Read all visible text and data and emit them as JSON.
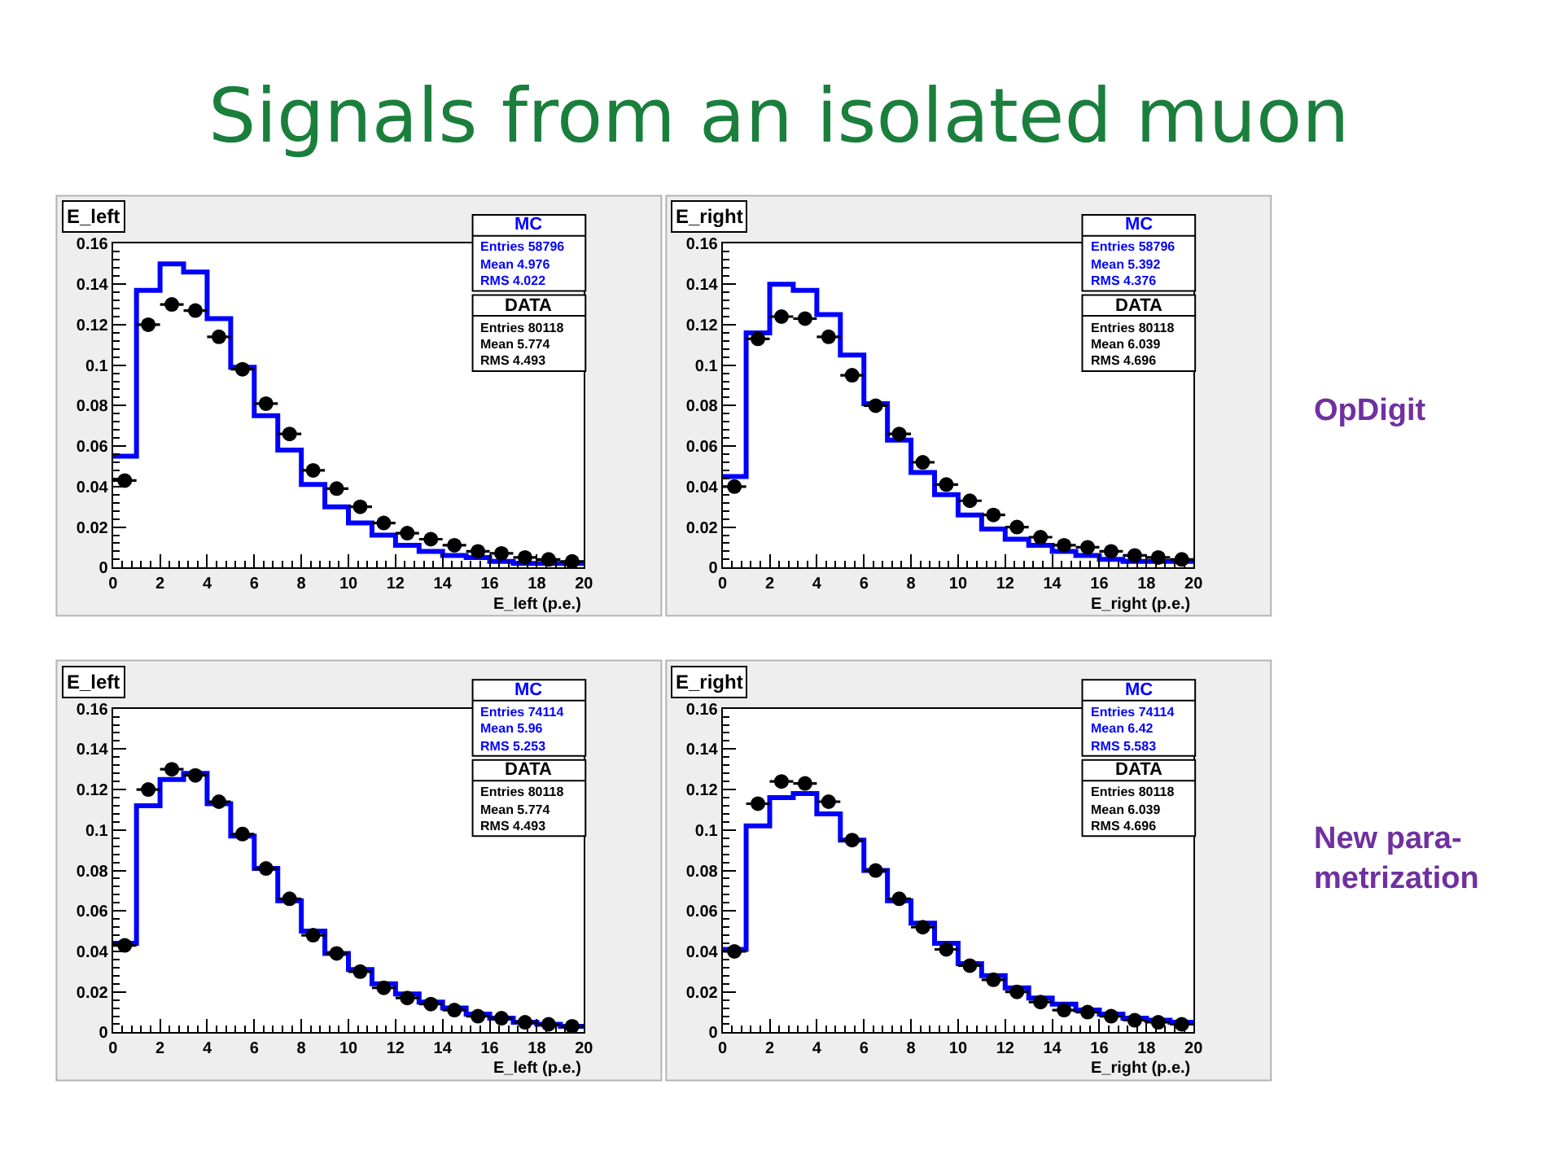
{
  "chart_data": [
    {
      "type": "other",
      "title": "Signals from an isolated muon",
      "annotations": [
        "OpDigit",
        "New para-\nmetrization"
      ]
    },
    {
      "type": "histogram",
      "title": "E_left",
      "xlabel": "E_left (p.e.)",
      "bins": [
        0,
        1,
        2,
        3,
        4,
        5,
        6,
        7,
        8,
        9,
        10,
        11,
        12,
        13,
        14,
        15,
        16,
        17,
        18,
        19,
        20
      ],
      "xlim": [
        0,
        20
      ],
      "ylim": [
        0,
        0.16
      ],
      "xticks": [
        0,
        2,
        4,
        6,
        8,
        10,
        12,
        14,
        16,
        18,
        20
      ],
      "yticks": [
        0,
        0.02,
        0.04,
        0.06,
        0.08,
        0.1,
        0.12,
        0.14,
        0.16
      ],
      "legend": "top right",
      "series": [
        {
          "name": "MC",
          "type": "histogram",
          "color": "#0000ff",
          "values": [
            0.055,
            0.137,
            0.15,
            0.146,
            0.123,
            0.099,
            0.075,
            0.058,
            0.041,
            0.03,
            0.022,
            0.016,
            0.011,
            0.008,
            0.006,
            0.005,
            0.003,
            0.002,
            0.002,
            0.002
          ]
        },
        {
          "name": "DATA",
          "type": "scatter",
          "color": "#000000",
          "marker": "circle",
          "x": [
            0.5,
            1.5,
            2.5,
            3.5,
            4.5,
            5.5,
            6.5,
            7.5,
            8.5,
            9.5,
            10.5,
            11.5,
            12.5,
            13.5,
            14.5,
            15.5,
            16.5,
            17.5,
            18.5,
            19.5
          ],
          "values": [
            0.043,
            0.12,
            0.13,
            0.127,
            0.114,
            0.098,
            0.081,
            0.066,
            0.048,
            0.039,
            0.03,
            0.022,
            0.017,
            0.014,
            0.011,
            0.008,
            0.007,
            0.005,
            0.004,
            0.003
          ],
          "xerrors": [
            0.5,
            0.5,
            0.5,
            0.5,
            0.5,
            0.5,
            0.5,
            0.5,
            0.5,
            0.5,
            0.5,
            0.5,
            0.5,
            0.5,
            0.5,
            0.5,
            0.5,
            0.5,
            0.5,
            0.5
          ]
        }
      ],
      "annotations": [
        "Entries 58796",
        "Mean 4.976",
        "RMS 4.022",
        "Entries 80118",
        "Mean 5.774",
        "RMS 4.493"
      ]
    },
    {
      "type": "histogram",
      "title": "E_right",
      "xlabel": "E_right (p.e.)",
      "bins": [
        0,
        1,
        2,
        3,
        4,
        5,
        6,
        7,
        8,
        9,
        10,
        11,
        12,
        13,
        14,
        15,
        16,
        17,
        18,
        19,
        20
      ],
      "xlim": [
        0,
        20
      ],
      "ylim": [
        0,
        0.16
      ],
      "xticks": [
        0,
        2,
        4,
        6,
        8,
        10,
        12,
        14,
        16,
        18,
        20
      ],
      "yticks": [
        0,
        0.02,
        0.04,
        0.06,
        0.08,
        0.1,
        0.12,
        0.14,
        0.16
      ],
      "legend": "top right",
      "series": [
        {
          "name": "MC",
          "type": "histogram",
          "color": "#0000ff",
          "values": [
            0.045,
            0.116,
            0.14,
            0.137,
            0.125,
            0.105,
            0.081,
            0.063,
            0.047,
            0.036,
            0.026,
            0.019,
            0.014,
            0.011,
            0.008,
            0.006,
            0.004,
            0.003,
            0.003,
            0.003
          ]
        },
        {
          "name": "DATA",
          "type": "scatter",
          "color": "#000000",
          "marker": "circle",
          "x": [
            0.5,
            1.5,
            2.5,
            3.5,
            4.5,
            5.5,
            6.5,
            7.5,
            8.5,
            9.5,
            10.5,
            11.5,
            12.5,
            13.5,
            14.5,
            15.5,
            16.5,
            17.5,
            18.5,
            19.5
          ],
          "values": [
            0.04,
            0.113,
            0.124,
            0.123,
            0.114,
            0.095,
            0.08,
            0.066,
            0.052,
            0.041,
            0.033,
            0.026,
            0.02,
            0.015,
            0.011,
            0.01,
            0.008,
            0.006,
            0.005,
            0.004
          ],
          "xerrors": [
            0.5,
            0.5,
            0.5,
            0.5,
            0.5,
            0.5,
            0.5,
            0.5,
            0.5,
            0.5,
            0.5,
            0.5,
            0.5,
            0.5,
            0.5,
            0.5,
            0.5,
            0.5,
            0.5,
            0.5
          ]
        }
      ],
      "annotations": [
        "Entries 58796",
        "Mean 5.392",
        "RMS 4.376",
        "Entries 80118",
        "Mean 6.039",
        "RMS 4.696"
      ]
    },
    {
      "type": "histogram",
      "title": "E_left",
      "xlabel": "E_left (p.e.)",
      "bins": [
        0,
        1,
        2,
        3,
        4,
        5,
        6,
        7,
        8,
        9,
        10,
        11,
        12,
        13,
        14,
        15,
        16,
        17,
        18,
        19,
        20
      ],
      "xlim": [
        0,
        20
      ],
      "ylim": [
        0,
        0.16
      ],
      "xticks": [
        0,
        2,
        4,
        6,
        8,
        10,
        12,
        14,
        16,
        18,
        20
      ],
      "yticks": [
        0,
        0.02,
        0.04,
        0.06,
        0.08,
        0.1,
        0.12,
        0.14,
        0.16
      ],
      "legend": "top right",
      "series": [
        {
          "name": "MC",
          "type": "histogram",
          "color": "#0000ff",
          "values": [
            0.044,
            0.112,
            0.125,
            0.128,
            0.113,
            0.097,
            0.081,
            0.065,
            0.05,
            0.039,
            0.031,
            0.024,
            0.019,
            0.015,
            0.012,
            0.009,
            0.007,
            0.005,
            0.004,
            0.003
          ]
        },
        {
          "name": "DATA",
          "type": "scatter",
          "color": "#000000",
          "marker": "circle",
          "x": [
            0.5,
            1.5,
            2.5,
            3.5,
            4.5,
            5.5,
            6.5,
            7.5,
            8.5,
            9.5,
            10.5,
            11.5,
            12.5,
            13.5,
            14.5,
            15.5,
            16.5,
            17.5,
            18.5,
            19.5
          ],
          "values": [
            0.043,
            0.12,
            0.13,
            0.127,
            0.114,
            0.098,
            0.081,
            0.066,
            0.048,
            0.039,
            0.03,
            0.022,
            0.017,
            0.014,
            0.011,
            0.008,
            0.007,
            0.005,
            0.004,
            0.003
          ],
          "xerrors": [
            0.5,
            0.5,
            0.5,
            0.5,
            0.5,
            0.5,
            0.5,
            0.5,
            0.5,
            0.5,
            0.5,
            0.5,
            0.5,
            0.5,
            0.5,
            0.5,
            0.5,
            0.5,
            0.5,
            0.5
          ]
        }
      ],
      "annotations": [
        "Entries 74114",
        "Mean 5.96",
        "RMS 5.253",
        "Entries 80118",
        "Mean 5.774",
        "RMS 4.493"
      ]
    },
    {
      "type": "histogram",
      "title": "E_right",
      "xlabel": "E_right (p.e.)",
      "bins": [
        0,
        1,
        2,
        3,
        4,
        5,
        6,
        7,
        8,
        9,
        10,
        11,
        12,
        13,
        14,
        15,
        16,
        17,
        18,
        19,
        20
      ],
      "xlim": [
        0,
        20
      ],
      "ylim": [
        0,
        0.16
      ],
      "xticks": [
        0,
        2,
        4,
        6,
        8,
        10,
        12,
        14,
        16,
        18,
        20
      ],
      "yticks": [
        0,
        0.02,
        0.04,
        0.06,
        0.08,
        0.1,
        0.12,
        0.14,
        0.16
      ],
      "legend": "top right",
      "series": [
        {
          "name": "MC",
          "type": "histogram",
          "color": "#0000ff",
          "values": [
            0.041,
            0.102,
            0.116,
            0.118,
            0.108,
            0.095,
            0.08,
            0.065,
            0.054,
            0.044,
            0.034,
            0.028,
            0.022,
            0.017,
            0.014,
            0.011,
            0.009,
            0.007,
            0.006,
            0.005
          ]
        },
        {
          "name": "DATA",
          "type": "scatter",
          "color": "#000000",
          "marker": "circle",
          "x": [
            0.5,
            1.5,
            2.5,
            3.5,
            4.5,
            5.5,
            6.5,
            7.5,
            8.5,
            9.5,
            10.5,
            11.5,
            12.5,
            13.5,
            14.5,
            15.5,
            16.5,
            17.5,
            18.5,
            19.5
          ],
          "values": [
            0.04,
            0.113,
            0.124,
            0.123,
            0.114,
            0.095,
            0.08,
            0.066,
            0.052,
            0.041,
            0.033,
            0.026,
            0.02,
            0.015,
            0.011,
            0.01,
            0.008,
            0.006,
            0.005,
            0.004
          ],
          "xerrors": [
            0.5,
            0.5,
            0.5,
            0.5,
            0.5,
            0.5,
            0.5,
            0.5,
            0.5,
            0.5,
            0.5,
            0.5,
            0.5,
            0.5,
            0.5,
            0.5,
            0.5,
            0.5,
            0.5,
            0.5
          ]
        }
      ],
      "annotations": [
        "Entries 74114",
        "Mean 6.42",
        "RMS 5.583",
        "Entries 80118",
        "Mean 6.039",
        "RMS 4.696"
      ]
    }
  ]
}
